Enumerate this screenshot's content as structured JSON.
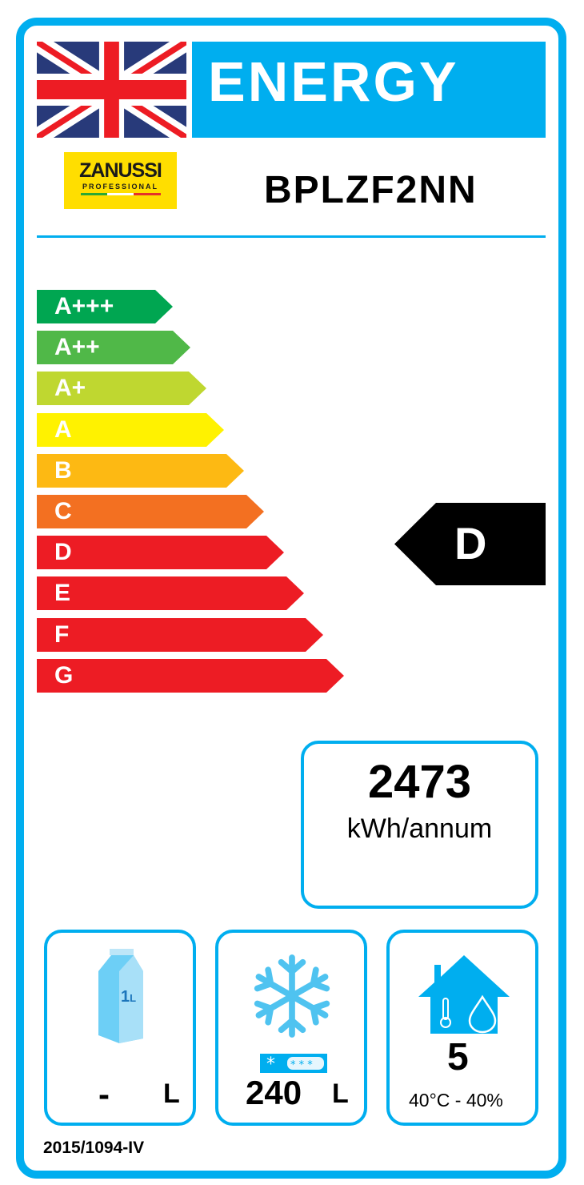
{
  "header": {
    "title": "ENERGY",
    "country_flag": "uk-flag-icon"
  },
  "brand": {
    "name": "ZANUSSI",
    "sub": "PROFESSIONAL"
  },
  "model": "BPLZF2NN",
  "scale": [
    {
      "label": "A+++",
      "color": "#00a651"
    },
    {
      "label": "A++",
      "color": "#50b848"
    },
    {
      "label": "A+",
      "color": "#bfd730"
    },
    {
      "label": "A",
      "color": "#fff200"
    },
    {
      "label": "B",
      "color": "#fdb913"
    },
    {
      "label": "C",
      "color": "#f37021"
    },
    {
      "label": "D",
      "color": "#ed1c24"
    },
    {
      "label": "E",
      "color": "#ed1c24"
    },
    {
      "label": "F",
      "color": "#ed1c24"
    },
    {
      "label": "G",
      "color": "#ed1c24"
    }
  ],
  "rating": "D",
  "consumption": {
    "value": "2473",
    "unit": "kWh/annum"
  },
  "chilled": {
    "value": "-",
    "unit": "L",
    "icon": "milk-carton-icon",
    "icon_text": "1L"
  },
  "frozen": {
    "value": "240",
    "unit": "L",
    "icon": "snowflake-icon"
  },
  "climate": {
    "class": "5",
    "conditions": "40°C - 40%",
    "icon": "house-climate-icon"
  },
  "regulation": "2015/1094-IV",
  "accent": "#00aeef"
}
